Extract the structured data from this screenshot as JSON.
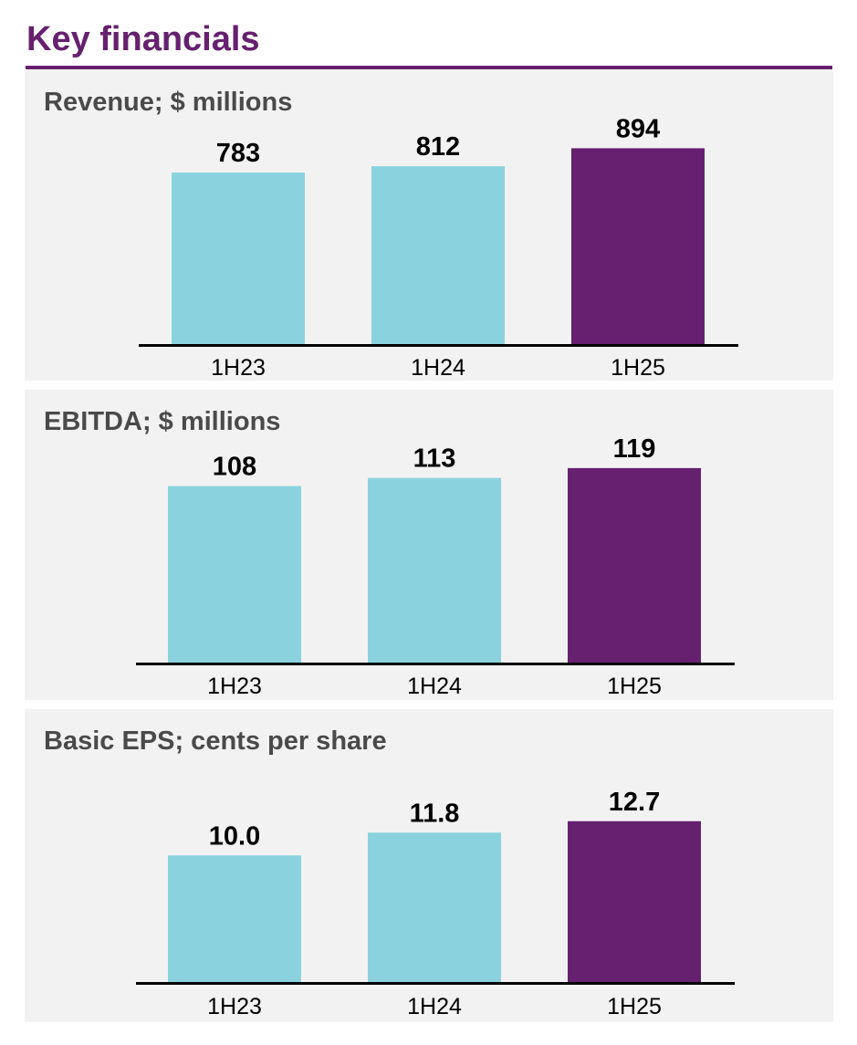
{
  "page": {
    "title": "Key financials",
    "accent_color": "#66206f",
    "base_color": "#8ad3de",
    "axis_color": "#000000",
    "panel_background": "#f2f2f2",
    "title_color_text": "#4a4a4a"
  },
  "chart_data": [
    {
      "type": "bar",
      "title": "Revenue; $ millions",
      "categories": [
        "1H23",
        "1H24",
        "1H25"
      ],
      "values": [
        783,
        812,
        894
      ],
      "value_labels": [
        "783",
        "812",
        "894"
      ],
      "highlight_index": 2,
      "ylim": [
        0,
        1000
      ],
      "grid": false,
      "xlabel": "",
      "ylabel": ""
    },
    {
      "type": "bar",
      "title": "EBITDA; $ millions",
      "categories": [
        "1H23",
        "1H24",
        "1H25"
      ],
      "values": [
        108,
        113,
        119
      ],
      "value_labels": [
        "108",
        "113",
        "119"
      ],
      "highlight_index": 2,
      "ylim": [
        0,
        110
      ],
      "grid": false,
      "xlabel": "",
      "ylabel": ""
    },
    {
      "type": "bar",
      "title": "Basic EPS; cents per share",
      "categories": [
        "1H23",
        "1H24",
        "1H25"
      ],
      "values": [
        10.0,
        11.8,
        12.7
      ],
      "value_labels": [
        "10.0",
        "11.8",
        "12.7"
      ],
      "highlight_index": 2,
      "ylim": [
        0,
        16
      ],
      "grid": false,
      "xlabel": "",
      "ylabel": ""
    }
  ]
}
